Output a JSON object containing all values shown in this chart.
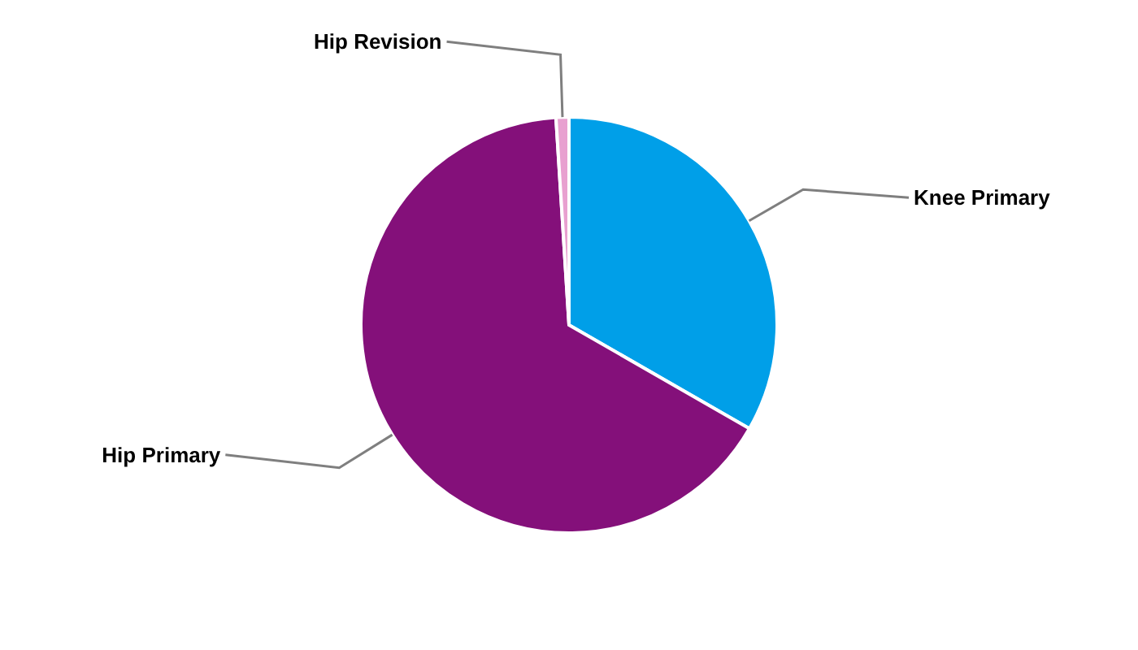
{
  "chart_data": {
    "type": "pie",
    "categories": [
      "Knee Primary",
      "Hip Primary",
      "Hip Revision"
    ],
    "values": [
      33.3,
      65.7,
      1.0
    ],
    "colors": [
      "#009fe8",
      "#84107a",
      "#e8a0d0"
    ]
  }
}
